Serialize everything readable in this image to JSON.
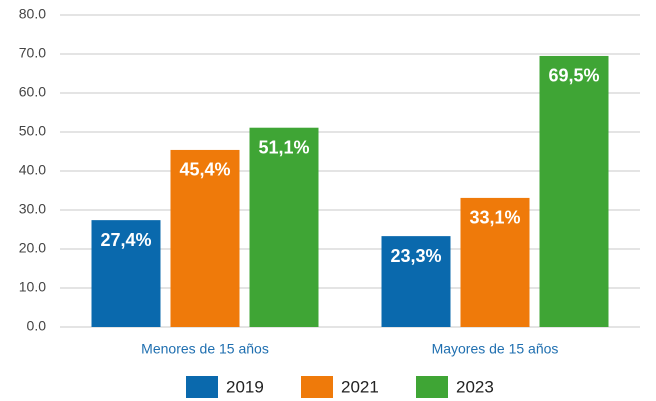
{
  "chart_data": {
    "type": "bar",
    "categories": [
      "Menores de 15 años",
      "Mayores de 15 años"
    ],
    "series": [
      {
        "name": "2019",
        "color": "#0a69ad",
        "values": [
          27.4,
          23.3
        ],
        "value_labels": [
          "27,4%",
          "23,3%"
        ]
      },
      {
        "name": "2021",
        "color": "#ef7a0a",
        "values": [
          45.4,
          33.1
        ],
        "value_labels": [
          "45,4%",
          "33,1%"
        ]
      },
      {
        "name": "2023",
        "color": "#3fa535",
        "values": [
          51.1,
          69.5
        ],
        "value_labels": [
          "51,1%",
          "69,5%"
        ]
      }
    ],
    "ylim": [
      0,
      80
    ],
    "yticks": [
      {
        "value": 0,
        "label": "0.0"
      },
      {
        "value": 10,
        "label": "10.0"
      },
      {
        "value": 20,
        "label": "20.0"
      },
      {
        "value": 30,
        "label": "30.0"
      },
      {
        "value": 40,
        "label": "40.0"
      },
      {
        "value": 50,
        "label": "50.0"
      },
      {
        "value": 60,
        "label": "60.0"
      },
      {
        "value": 70,
        "label": "70.0"
      },
      {
        "value": 80,
        "label": "80.0"
      }
    ],
    "grid": true,
    "legend": "bottom"
  }
}
